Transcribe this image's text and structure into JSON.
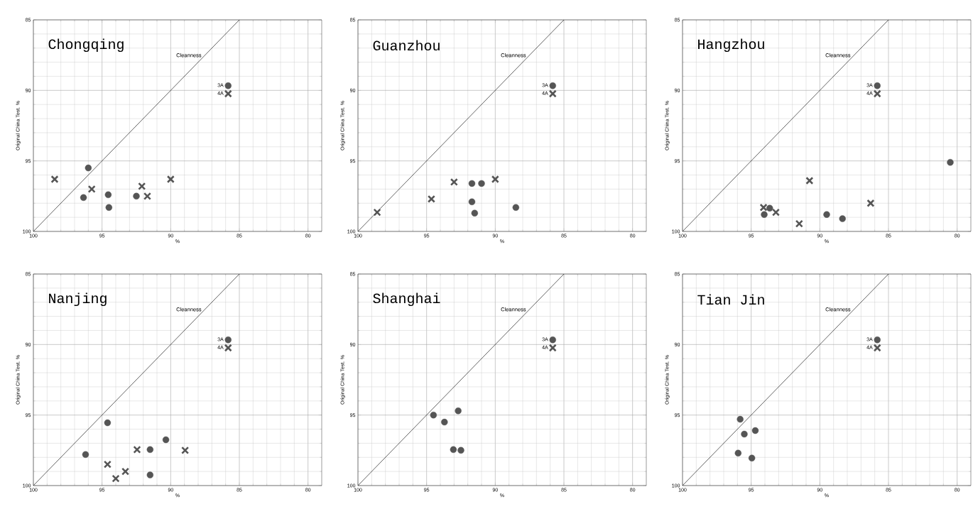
{
  "chart_data": [
    {
      "type": "scatter",
      "title": "Chongqing",
      "xlabel": "%",
      "ylabel": "Original China Test. %",
      "xlim": [
        100,
        79
      ],
      "ylim": [
        100,
        85
      ],
      "xticks": [
        100,
        95,
        90,
        85,
        80
      ],
      "yticks": [
        100,
        95,
        90,
        85
      ],
      "grid": true,
      "legend": "top right",
      "series": [
        {
          "name": "3A",
          "color": "#555555",
          "marker": "circle",
          "x": [
            96.0,
            96.35,
            94.55,
            94.5,
            92.5
          ],
          "values": [
            95.5,
            97.6,
            97.4,
            98.3,
            97.5
          ]
        },
        {
          "name": "4A",
          "color": "#555555",
          "marker": "cross",
          "x": [
            98.45,
            95.75,
            92.1,
            91.7,
            90.0
          ],
          "values": [
            96.3,
            97.0,
            96.8,
            97.5,
            96.3
          ]
        },
        {
          "name": "Cleanness",
          "type": "line",
          "color": "#222222",
          "marker": "none",
          "x": [
            100,
            85
          ],
          "values": [
            100,
            85
          ]
        }
      ]
    },
    {
      "type": "scatter",
      "title": "Guanzhou",
      "xlabel": "%",
      "ylabel": "Original China Test. %",
      "xlim": [
        100,
        79
      ],
      "ylim": [
        100,
        85
      ],
      "xticks": [
        100,
        95,
        90,
        85,
        80
      ],
      "yticks": [
        100,
        95,
        90,
        85
      ],
      "grid": true,
      "legend": "top right",
      "series": [
        {
          "name": "3A",
          "color": "#555555",
          "marker": "circle",
          "x": [
            91.7,
            91.0,
            91.7,
            91.5,
            88.5
          ],
          "values": [
            96.6,
            96.6,
            97.9,
            98.7,
            98.3
          ]
        },
        {
          "name": "4A",
          "color": "#555555",
          "marker": "cross",
          "x": [
            98.6,
            94.65,
            93.0,
            90.0
          ],
          "values": [
            98.65,
            97.7,
            96.5,
            96.3
          ]
        },
        {
          "name": "Cleanness",
          "type": "line",
          "color": "#222222",
          "marker": "none",
          "x": [
            100,
            85
          ],
          "values": [
            100,
            85
          ]
        }
      ]
    },
    {
      "type": "scatter",
      "title": "Hangzhou",
      "xlabel": "%",
      "ylabel": "Original China Test. %",
      "xlim": [
        100,
        79
      ],
      "ylim": [
        100,
        85
      ],
      "xticks": [
        100,
        95,
        90,
        85,
        80
      ],
      "yticks": [
        100,
        95,
        90,
        85
      ],
      "grid": true,
      "legend": "top right",
      "series": [
        {
          "name": "3A",
          "color": "#555555",
          "marker": "circle",
          "x": [
            94.05,
            93.65,
            89.5,
            88.35,
            80.5
          ],
          "values": [
            98.8,
            98.35,
            98.8,
            99.1,
            95.1
          ]
        },
        {
          "name": "4A",
          "color": "#555555",
          "marker": "cross",
          "x": [
            94.1,
            93.2,
            91.5,
            90.75,
            86.3
          ],
          "values": [
            98.3,
            98.65,
            99.45,
            96.4,
            98.0
          ]
        },
        {
          "name": "Cleanness",
          "type": "line",
          "color": "#222222",
          "marker": "none",
          "x": [
            100,
            85
          ],
          "values": [
            100,
            85
          ]
        }
      ]
    },
    {
      "type": "scatter",
      "title": "Nanjing",
      "xlabel": "%",
      "ylabel": "Original China Test. %",
      "xlim": [
        100,
        79
      ],
      "ylim": [
        100,
        85
      ],
      "xticks": [
        100,
        95,
        90,
        85,
        80
      ],
      "yticks": [
        100,
        95,
        90,
        85
      ],
      "grid": true,
      "legend": "top right",
      "series": [
        {
          "name": "3A",
          "color": "#555555",
          "marker": "circle",
          "x": [
            96.2,
            94.6,
            91.5,
            91.5,
            90.35
          ],
          "values": [
            97.8,
            95.55,
            97.45,
            99.25,
            96.75
          ]
        },
        {
          "name": "4A",
          "color": "#555555",
          "marker": "cross",
          "x": [
            94.6,
            94.0,
            93.3,
            92.45,
            88.95
          ],
          "values": [
            98.5,
            99.5,
            99.0,
            97.45,
            97.5
          ]
        },
        {
          "name": "Cleanness",
          "type": "line",
          "color": "#222222",
          "marker": "none",
          "x": [
            100,
            85
          ],
          "values": [
            100,
            85
          ]
        }
      ]
    },
    {
      "type": "scatter",
      "title": "Shanghai",
      "xlabel": "%",
      "ylabel": "Original China Test. %",
      "xlim": [
        100,
        79
      ],
      "ylim": [
        100,
        85
      ],
      "xticks": [
        100,
        95,
        90,
        85,
        80
      ],
      "yticks": [
        100,
        95,
        90,
        85
      ],
      "grid": true,
      "legend": "top right",
      "series": [
        {
          "name": "3A",
          "color": "#555555",
          "marker": "circle",
          "x": [
            94.5,
            93.7,
            92.7,
            93.05,
            92.5
          ],
          "values": [
            95.0,
            95.5,
            94.7,
            97.45,
            97.5
          ]
        },
        {
          "name": "4A",
          "color": "#555555",
          "marker": "cross"
        },
        {
          "name": "Cleanness",
          "type": "line",
          "color": "#222222",
          "marker": "none",
          "x": [
            100,
            85
          ],
          "values": [
            100,
            85
          ]
        }
      ]
    },
    {
      "type": "scatter",
      "title": "Tian Jin",
      "xlabel": "%",
      "ylabel": "Original China Test. %",
      "xlim": [
        100,
        79
      ],
      "ylim": [
        100,
        85
      ],
      "xticks": [
        100,
        95,
        90,
        85,
        80
      ],
      "yticks": [
        100,
        95,
        90,
        85
      ],
      "grid": true,
      "legend": "top right",
      "series": [
        {
          "name": "3A",
          "color": "#555555",
          "marker": "circle",
          "x": [
            95.8,
            95.5,
            94.7,
            95.95,
            94.95
          ],
          "values": [
            95.3,
            96.35,
            96.1,
            97.7,
            98.05
          ]
        },
        {
          "name": "4A",
          "color": "#555555",
          "marker": "cross"
        },
        {
          "name": "Cleanness",
          "type": "line",
          "color": "#222222",
          "marker": "none",
          "x": [
            100,
            85
          ],
          "values": [
            100,
            85
          ]
        }
      ]
    }
  ]
}
